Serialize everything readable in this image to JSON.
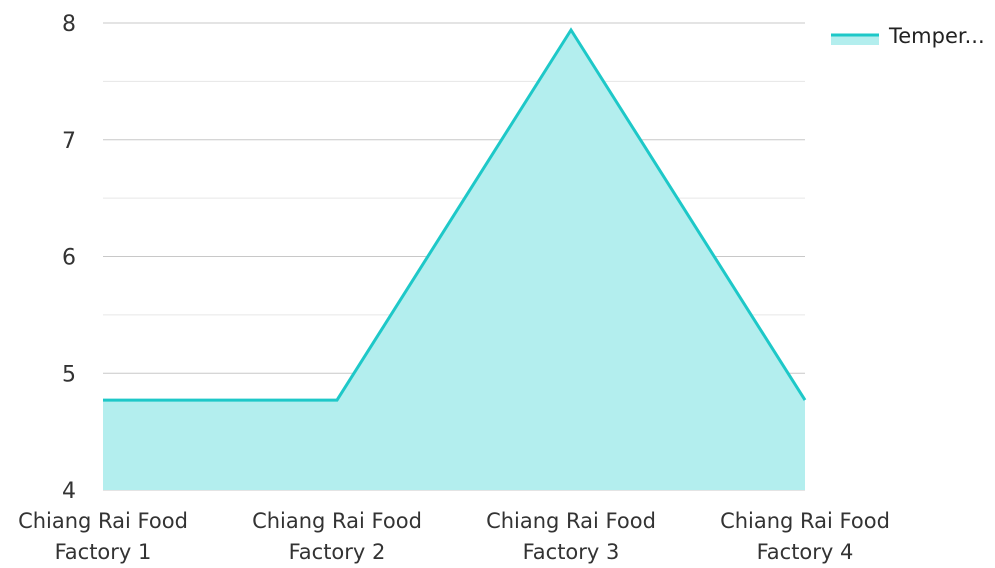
{
  "chart_data": {
    "type": "area",
    "title": "",
    "xlabel": "",
    "ylabel": "",
    "categories": [
      [
        "Chiang Rai Food",
        "Factory 1"
      ],
      [
        "Chiang Rai Food",
        "Factory 2"
      ],
      [
        "Chiang Rai Food",
        "Factory 3"
      ],
      [
        "Chiang Rai Food",
        "Factory 4"
      ]
    ],
    "series": [
      {
        "name": "Temper...",
        "values": [
          4.77,
          4.77,
          7.94,
          4.77
        ],
        "line_color": "#1ec8c8",
        "fill_color": "#b3eeee"
      }
    ],
    "ylim": [
      4,
      8
    ],
    "y_ticks": [
      "4",
      "5",
      "6",
      "7",
      "8"
    ],
    "minor_gridlines": true,
    "grid": true,
    "legend_position": "top-right"
  }
}
